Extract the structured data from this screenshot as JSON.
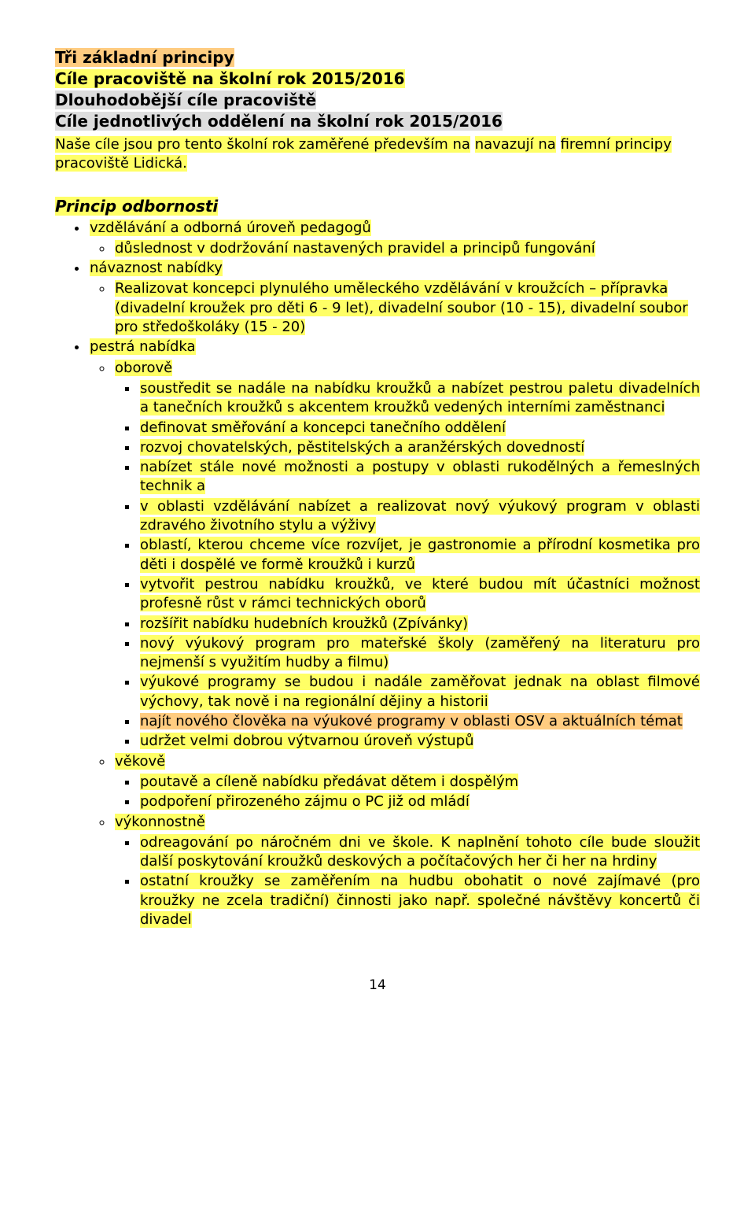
{
  "header": {
    "l1": "Tři základní principy",
    "l2": "Cíle pracoviště na školní rok 2015/2016",
    "l3": "Dlouhodobější cíle pracoviště",
    "l4": "Cíle jednotlivých oddělení na školní rok 2015/2016"
  },
  "intro": {
    "part1": "Naše cíle jsou pro tento školní rok zaměřené především na",
    "space1": " ",
    "part2": "navazují na",
    "space2": " ",
    "part3": "firemní principy pracoviště Lidická."
  },
  "section": {
    "title": "Princip odbornosti"
  },
  "l1": {
    "a": "vzdělávání a odborná úroveň pedagogů",
    "b": "návaznost nabídky",
    "c": "pestrá nabídka"
  },
  "l2": {
    "a1": "důslednost v dodržování nastavených pravidel a principů fungování",
    "b1": "Realizovat koncepci plynulého uměleckého vzdělávání v kroužcích – přípravka (divadelní kroužek pro děti 6 - 9 let), divadelní soubor (10 - 15), divadelní soubor pro středoškoláky (15 - 20)",
    "c1": "oborově",
    "c2": "věkově",
    "c3": "výkonnostně"
  },
  "oborove": {
    "i1": "soustředit se nadále na nabídku kroužků a nabízet pestrou paletu divadelních a tanečních kroužků s akcentem kroužků vedených interními zaměstnanci",
    "i2": "definovat směřování a koncepci tanečního oddělení",
    "i3": "rozvoj chovatelských, pěstitelských a aranžérských dovedností",
    "i4a": "nabízet stále nové možnosti a postupy v oblasti rukodělných a řemeslných technik a",
    "i4b": "",
    "i5": "v oblasti vzdělávání nabízet a realizovat nový výukový program v oblasti zdravého životního stylu a výživy",
    "i6a": "oblastí, kterou chceme více rozvíjet, je gastronomie a ",
    "i6b": " přírodní kosmetika pro děti i dospělé ve formě kroužků i kurzů",
    "i7": "vytvořit pestrou nabídku kroužků, ve které budou mít účastníci možnost profesně růst v rámci technických oborů",
    "i8": "rozšířit nabídku hudebních kroužků (Zpívánky)",
    "i9": "nový výukový program pro mateřské školy (zaměřený na literaturu pro nejmenší s využitím hudby a filmu)",
    "i10": "výukové programy se budou i nadále zaměřovat jednak na oblast filmové výchovy, tak nově i na regionální dějiny a historii",
    "i11": "najít nového člověka na výukové programy v oblasti OSV a aktuálních témat",
    "i12": "udržet velmi dobrou výtvarnou úroveň výstupů"
  },
  "vekove": {
    "i1": "poutavě a cíleně nabídku předávat dětem i dospělým",
    "i2": "podpoření přirozeného zájmu o PC již od mládí"
  },
  "vykon": {
    "i1": "odreagování po náročném dni ve škole. K naplnění tohoto cíle bude sloužit další poskytování kroužků deskových a počítačových her či her na hrdiny",
    "i2a": "ostatní kroužky se zaměřením na hudbu obohatit o nové zajímavé (pro kroužky ne zcela ",
    "i2b": " tradiční) činnosti jako např. společné návštěvy koncertů či divadel"
  },
  "pagenum": "14"
}
